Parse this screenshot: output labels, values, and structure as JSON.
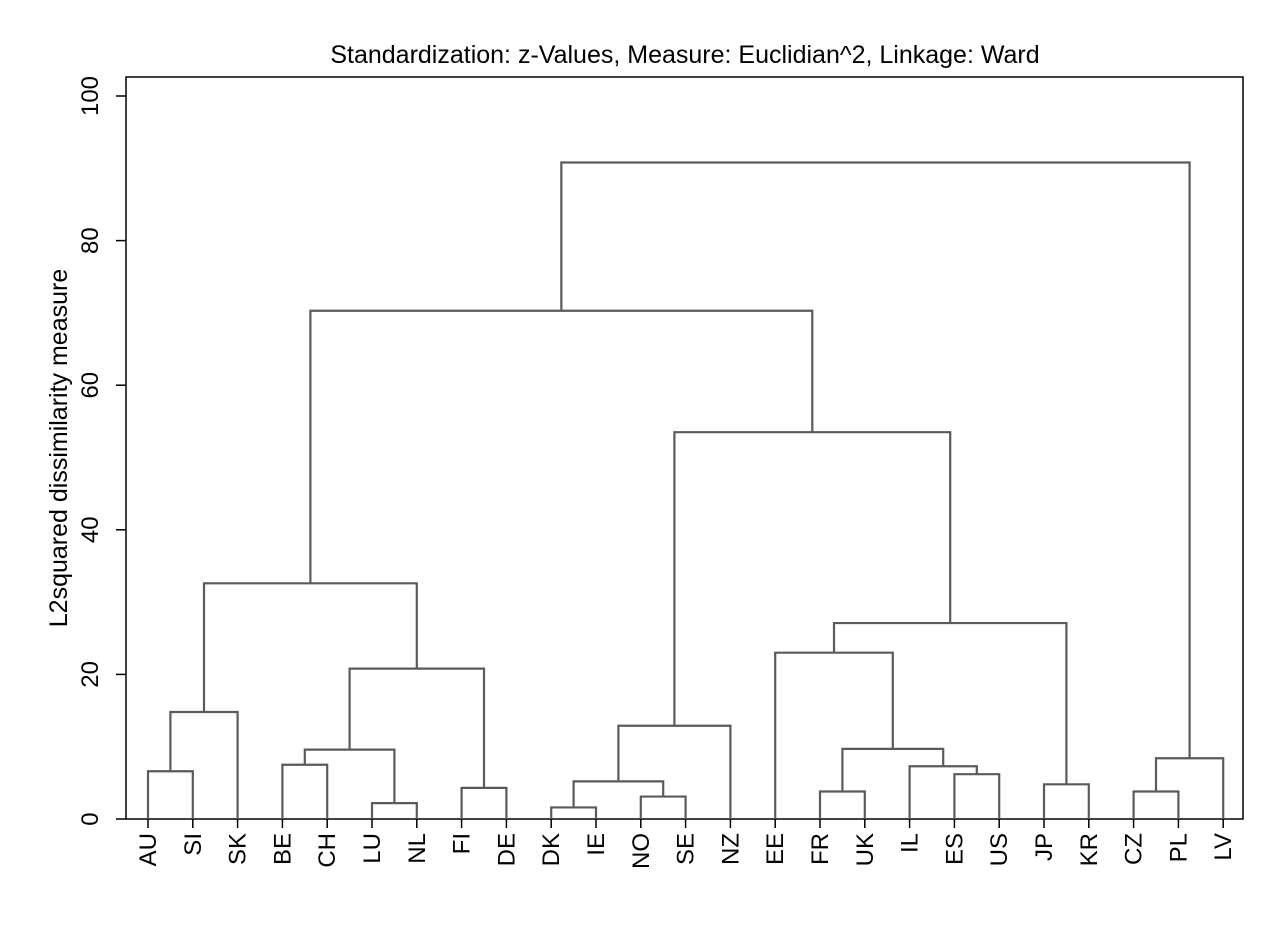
{
  "chart_data": {
    "type": "dendrogram",
    "title": "Standardization: z-Values, Measure: Euclidian^2, Linkage: Ward",
    "ylabel": "L2squared dissimilarity measure",
    "xlabel": "",
    "ylim": [
      0,
      100
    ],
    "yticks": [
      "0",
      "20",
      "40",
      "60",
      "80",
      "100"
    ],
    "leaves": [
      "AU",
      "SI",
      "SK",
      "BE",
      "CH",
      "LU",
      "NL",
      "FI",
      "DE",
      "DK",
      "IE",
      "NO",
      "SE",
      "NZ",
      "EE",
      "FR",
      "UK",
      "IL",
      "ES",
      "US",
      "JP",
      "KR",
      "CZ",
      "PL",
      "LV"
    ],
    "merges": [
      {
        "id": "m1",
        "children": [
          "AU",
          "SI"
        ],
        "height": 6.6
      },
      {
        "id": "m2",
        "children": [
          "m1",
          "SK"
        ],
        "height": 14.8
      },
      {
        "id": "m3",
        "children": [
          "BE",
          "CH"
        ],
        "height": 7.5
      },
      {
        "id": "m4",
        "children": [
          "LU",
          "NL"
        ],
        "height": 2.2
      },
      {
        "id": "m5",
        "children": [
          "m3",
          "m4"
        ],
        "height": 9.6
      },
      {
        "id": "m6",
        "children": [
          "FI",
          "DE"
        ],
        "height": 4.3
      },
      {
        "id": "m7",
        "children": [
          "m5",
          "m6"
        ],
        "height": 20.8
      },
      {
        "id": "m8",
        "children": [
          "m2",
          "m7"
        ],
        "height": 32.6
      },
      {
        "id": "m9",
        "children": [
          "DK",
          "IE"
        ],
        "height": 1.6
      },
      {
        "id": "m10",
        "children": [
          "NO",
          "SE"
        ],
        "height": 3.1
      },
      {
        "id": "m11",
        "children": [
          "m9",
          "m10"
        ],
        "height": 5.2
      },
      {
        "id": "m12",
        "children": [
          "m11",
          "NZ"
        ],
        "height": 12.9
      },
      {
        "id": "m13",
        "children": [
          "FR",
          "UK"
        ],
        "height": 3.8
      },
      {
        "id": "m14",
        "children": [
          "ES",
          "US"
        ],
        "height": 6.2
      },
      {
        "id": "m15",
        "children": [
          "IL",
          "m14"
        ],
        "height": 7.3
      },
      {
        "id": "m16",
        "children": [
          "m13",
          "m15"
        ],
        "height": 9.7
      },
      {
        "id": "m17",
        "children": [
          "EE",
          "m16"
        ],
        "height": 23.0
      },
      {
        "id": "m18",
        "children": [
          "JP",
          "KR"
        ],
        "height": 4.8
      },
      {
        "id": "m19",
        "children": [
          "m17",
          "m18"
        ],
        "height": 27.1
      },
      {
        "id": "m20",
        "children": [
          "m12",
          "m19"
        ],
        "height": 53.5
      },
      {
        "id": "m21",
        "children": [
          "m8",
          "m20"
        ],
        "height": 70.3
      },
      {
        "id": "m22",
        "children": [
          "CZ",
          "PL"
        ],
        "height": 3.8
      },
      {
        "id": "m23",
        "children": [
          "m22",
          "LV"
        ],
        "height": 8.4
      },
      {
        "id": "m24",
        "children": [
          "m21",
          "m23"
        ],
        "height": 90.8
      }
    ],
    "colors": {
      "line": "#5a5a5a",
      "frame": "#000000",
      "background": "#ffffff"
    }
  }
}
